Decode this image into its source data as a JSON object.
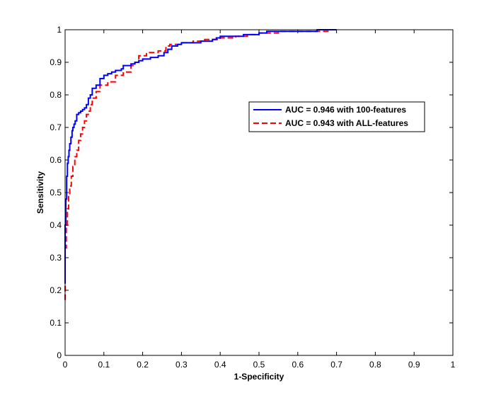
{
  "chart_data": {
    "type": "line",
    "title": "",
    "xlabel": "1-Specificity",
    "ylabel": "Sensitivity",
    "xlim": [
      0,
      1
    ],
    "ylim": [
      0,
      1
    ],
    "xticks": [
      "0",
      "0.1",
      "0.2",
      "0.3",
      "0.4",
      "0.5",
      "0.6",
      "0.7",
      "0.8",
      "0.9",
      "1"
    ],
    "yticks": [
      "0",
      "0.1",
      "0.2",
      "0.3",
      "0.4",
      "0.5",
      "0.6",
      "0.7",
      "0.8",
      "0.9",
      "1"
    ],
    "grid": false,
    "legend_position": "right",
    "series": [
      {
        "name": "AUC = 0.946 with 100-features",
        "color": "#0000ff",
        "style": "solid",
        "x": [
          0,
          0,
          0.002,
          0.002,
          0.004,
          0.004,
          0.006,
          0.006,
          0.008,
          0.008,
          0.01,
          0.01,
          0.012,
          0.012,
          0.015,
          0.015,
          0.018,
          0.018,
          0.02,
          0.02,
          0.023,
          0.023,
          0.026,
          0.026,
          0.03,
          0.03,
          0.035,
          0.035,
          0.04,
          0.04,
          0.045,
          0.045,
          0.05,
          0.05,
          0.055,
          0.055,
          0.06,
          0.06,
          0.065,
          0.065,
          0.07,
          0.07,
          0.08,
          0.08,
          0.09,
          0.09,
          0.1,
          0.1,
          0.11,
          0.11,
          0.12,
          0.12,
          0.13,
          0.13,
          0.145,
          0.145,
          0.15,
          0.15,
          0.17,
          0.17,
          0.18,
          0.18,
          0.19,
          0.19,
          0.2,
          0.2,
          0.22,
          0.22,
          0.24,
          0.24,
          0.255,
          0.255,
          0.265,
          0.265,
          0.275,
          0.275,
          0.29,
          0.29,
          0.3,
          0.3,
          0.35,
          0.35,
          0.38,
          0.38,
          0.39,
          0.39,
          0.4,
          0.4,
          0.46,
          0.46,
          0.5,
          0.5,
          0.52,
          0.52,
          0.65,
          0.65,
          0.7
        ],
        "y": [
          0.22,
          0.4,
          0.4,
          0.48,
          0.48,
          0.55,
          0.55,
          0.59,
          0.59,
          0.61,
          0.61,
          0.63,
          0.63,
          0.65,
          0.65,
          0.67,
          0.67,
          0.69,
          0.69,
          0.7,
          0.7,
          0.71,
          0.71,
          0.72,
          0.72,
          0.74,
          0.74,
          0.745,
          0.745,
          0.75,
          0.75,
          0.755,
          0.755,
          0.76,
          0.76,
          0.77,
          0.77,
          0.79,
          0.79,
          0.8,
          0.8,
          0.82,
          0.82,
          0.83,
          0.83,
          0.85,
          0.85,
          0.86,
          0.86,
          0.865,
          0.865,
          0.87,
          0.87,
          0.875,
          0.875,
          0.88,
          0.88,
          0.89,
          0.89,
          0.895,
          0.895,
          0.9,
          0.9,
          0.905,
          0.905,
          0.91,
          0.91,
          0.915,
          0.915,
          0.92,
          0.92,
          0.93,
          0.93,
          0.94,
          0.94,
          0.95,
          0.95,
          0.955,
          0.955,
          0.96,
          0.96,
          0.965,
          0.965,
          0.97,
          0.97,
          0.975,
          0.975,
          0.98,
          0.98,
          0.985,
          0.985,
          0.99,
          0.99,
          0.995,
          0.995,
          1.0,
          1.0
        ]
      },
      {
        "name": "AUC = 0.943 with ALL-features",
        "color": "#ff0000",
        "style": "dashed",
        "x": [
          0,
          0,
          0.003,
          0.003,
          0.006,
          0.006,
          0.009,
          0.009,
          0.012,
          0.012,
          0.016,
          0.016,
          0.02,
          0.02,
          0.025,
          0.025,
          0.03,
          0.03,
          0.035,
          0.035,
          0.04,
          0.04,
          0.045,
          0.045,
          0.05,
          0.05,
          0.055,
          0.055,
          0.06,
          0.06,
          0.065,
          0.065,
          0.07,
          0.07,
          0.08,
          0.08,
          0.09,
          0.09,
          0.11,
          0.11,
          0.13,
          0.13,
          0.15,
          0.15,
          0.17,
          0.17,
          0.18,
          0.18,
          0.19,
          0.19,
          0.21,
          0.21,
          0.24,
          0.24,
          0.26,
          0.26,
          0.27,
          0.27,
          0.3,
          0.3,
          0.33,
          0.33,
          0.36,
          0.36,
          0.4,
          0.4,
          0.44,
          0.44,
          0.47,
          0.47,
          0.5,
          0.5,
          0.55,
          0.55,
          0.68,
          0.68,
          0.7
        ],
        "y": [
          0.17,
          0.33,
          0.33,
          0.4,
          0.4,
          0.45,
          0.45,
          0.49,
          0.49,
          0.52,
          0.52,
          0.55,
          0.55,
          0.58,
          0.58,
          0.61,
          0.61,
          0.63,
          0.63,
          0.66,
          0.66,
          0.68,
          0.68,
          0.7,
          0.7,
          0.72,
          0.72,
          0.74,
          0.74,
          0.75,
          0.75,
          0.77,
          0.77,
          0.79,
          0.79,
          0.81,
          0.81,
          0.83,
          0.83,
          0.84,
          0.84,
          0.86,
          0.86,
          0.87,
          0.87,
          0.89,
          0.89,
          0.9,
          0.9,
          0.92,
          0.92,
          0.93,
          0.93,
          0.935,
          0.935,
          0.95,
          0.95,
          0.955,
          0.955,
          0.96,
          0.96,
          0.965,
          0.965,
          0.97,
          0.97,
          0.975,
          0.975,
          0.98,
          0.98,
          0.985,
          0.985,
          0.99,
          0.99,
          0.995,
          0.995,
          1.0,
          1.0
        ]
      }
    ]
  }
}
